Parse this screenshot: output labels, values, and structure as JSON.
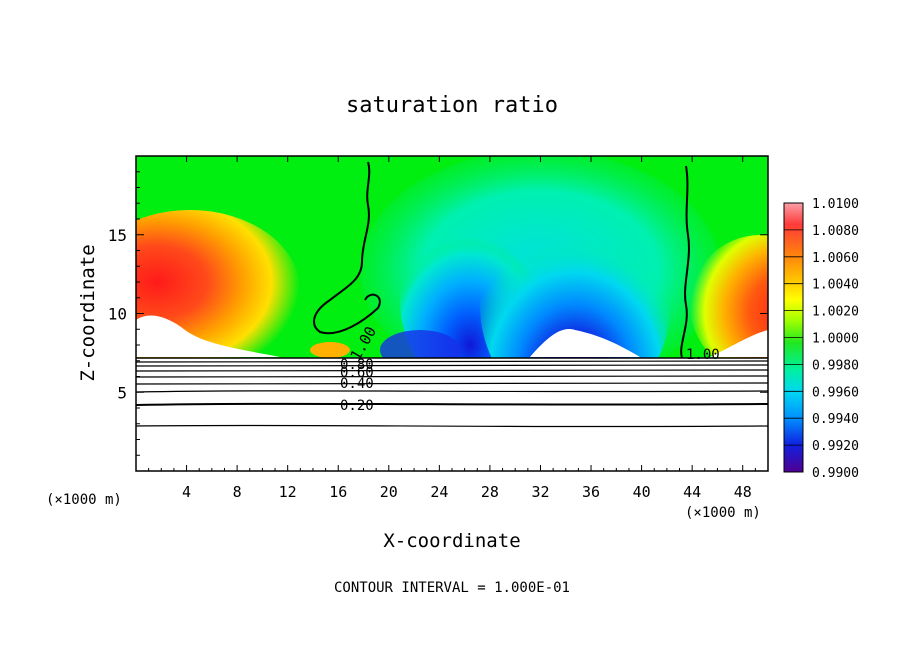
{
  "chart_data": {
    "type": "heatmap",
    "title": "saturation ratio",
    "xlabel": "X-coordinate",
    "ylabel": "Z-coordinate",
    "x_unit_left": "(×1000 m)",
    "x_unit_right": "(×1000 m)",
    "footer": "CONTOUR INTERVAL = 1.000E-01",
    "xlim": [
      0,
      50
    ],
    "ylim": [
      0,
      20
    ],
    "x_ticks": [
      4,
      8,
      12,
      16,
      20,
      24,
      28,
      32,
      36,
      40,
      44,
      48
    ],
    "y_ticks": [
      5,
      10,
      15
    ],
    "colorbar": {
      "labels": [
        "1.0100",
        "1.0080",
        "1.0060",
        "1.0040",
        "1.0020",
        "1.0000",
        "0.9980",
        "0.9960",
        "0.9940",
        "0.9920",
        "0.9900"
      ],
      "range": [
        0.99,
        1.01
      ],
      "colors": [
        "#f48a9a",
        "#ff5a5a",
        "#ff2020",
        "#ff7a10",
        "#ffb000",
        "#ffff00",
        "#b4ff00",
        "#28e428",
        "#00f080",
        "#00e4c0",
        "#00d4f0",
        "#00a8ff",
        "#0070ff",
        "#1030e8",
        "#2000c0",
        "#4a0090"
      ]
    },
    "contour_labels": [
      "1.00",
      "1.00",
      "1.00",
      "0.80",
      "0.60",
      "0.40",
      "0.20"
    ],
    "contour_levels": [
      0.2,
      0.4,
      0.6,
      0.8,
      1.0
    ]
  }
}
